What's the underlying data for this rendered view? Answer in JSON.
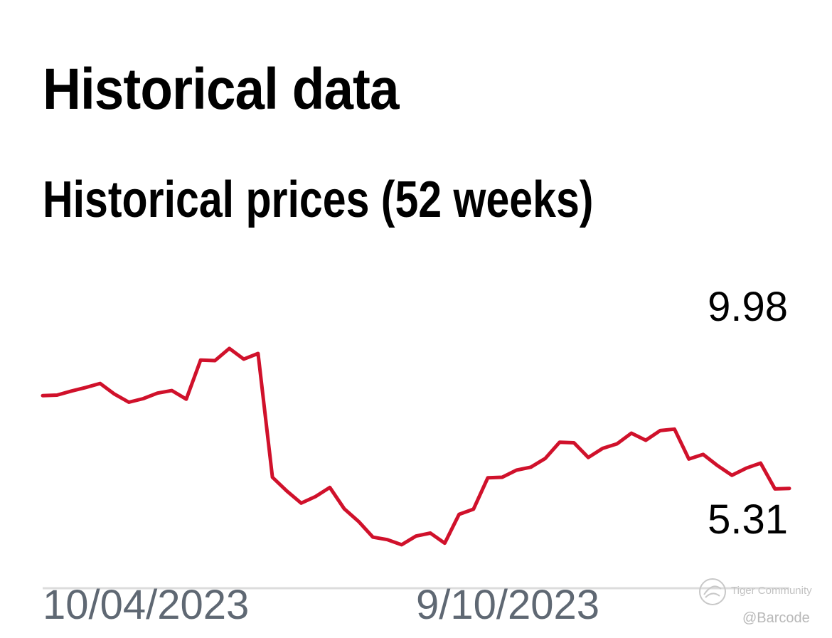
{
  "heading": "Historical data",
  "subheading": "Historical prices (52 weeks)",
  "chart_data": {
    "type": "line",
    "title": "",
    "xlabel": "",
    "ylabel": "",
    "x_tick_labels": [
      "10/04/2023",
      "9/10/2023"
    ],
    "high_label": "9.98",
    "low_label": "5.31",
    "ylim": [
      5.31,
      9.98
    ],
    "grid": false,
    "legend": "none",
    "line_color": "#d0112b",
    "series": [
      {
        "values": [
          8.28,
          8.29,
          8.37,
          8.44,
          8.52,
          8.31,
          8.15,
          8.22,
          8.33,
          8.38,
          8.21,
          8.98,
          8.97,
          9.21,
          9.0,
          9.11,
          6.67,
          6.4,
          6.16,
          6.29,
          6.47,
          6.05,
          5.8,
          5.49,
          5.44,
          5.34,
          5.51,
          5.57,
          5.37,
          5.94,
          6.04,
          6.66,
          6.67,
          6.81,
          6.87,
          7.04,
          7.36,
          7.35,
          7.06,
          7.24,
          7.33,
          7.54,
          7.4,
          7.59,
          7.62,
          7.03,
          7.12,
          6.9,
          6.71,
          6.85,
          6.95,
          6.44,
          6.45
        ]
      }
    ]
  },
  "watermark": {
    "brand": "Tiger Community",
    "handle": "@Barcode"
  }
}
